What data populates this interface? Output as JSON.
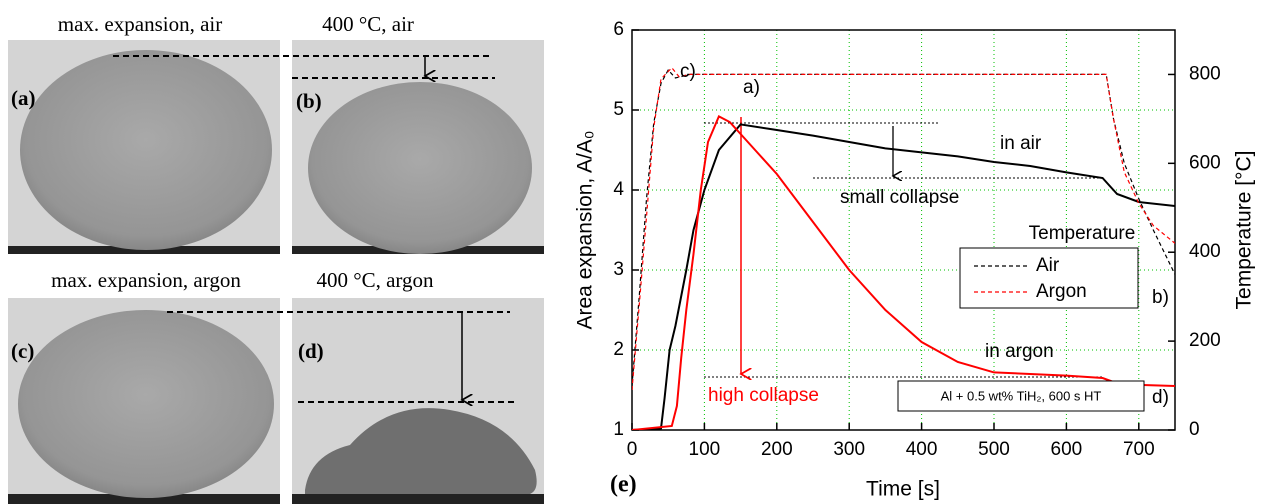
{
  "photos": [
    {
      "title": "max. expansion, air",
      "label": "(a)"
    },
    {
      "title": "400 °C, air",
      "label": "(b)"
    },
    {
      "title": "max. expansion, argon",
      "label": "(c)"
    },
    {
      "title": "400 °C, argon",
      "label": "(d)"
    }
  ],
  "chart_data": {
    "type": "line",
    "panel_label": "(e)",
    "x_label": "Time  [s]",
    "y_label": "Area expansion, A/A₀",
    "y2_label": "Temperature  [°C]",
    "xlim": [
      0,
      750
    ],
    "xticks": [
      0,
      100,
      200,
      300,
      400,
      500,
      600,
      700
    ],
    "ylim": [
      1,
      6
    ],
    "yticks": [
      1,
      2,
      3,
      4,
      5,
      6
    ],
    "y2lim": [
      0,
      900
    ],
    "y2ticks": [
      0,
      200,
      400,
      600,
      800
    ],
    "grid": true,
    "legend_title": "Temperature",
    "legend": "right",
    "series": [
      {
        "name": "in air",
        "color": "#000000",
        "axis": "y",
        "x": [
          0,
          40,
          45,
          52,
          60,
          75,
          85,
          100,
          120,
          150,
          200,
          250,
          300,
          350,
          400,
          450,
          500,
          550,
          600,
          650,
          660,
          670,
          700,
          750
        ],
        "values": [
          1.0,
          1.02,
          1.4,
          2.0,
          2.3,
          3.0,
          3.5,
          4.0,
          4.5,
          4.82,
          4.75,
          4.68,
          4.6,
          4.52,
          4.47,
          4.42,
          4.35,
          4.3,
          4.22,
          4.15,
          4.05,
          3.95,
          3.85,
          3.8
        ]
      },
      {
        "name": "in argon",
        "color": "#ff0000",
        "axis": "y",
        "x": [
          0,
          55,
          62,
          68,
          75,
          85,
          95,
          105,
          120,
          135,
          150,
          175,
          200,
          250,
          300,
          350,
          400,
          450,
          500,
          550,
          600,
          650,
          665,
          680,
          750
        ],
        "values": [
          1.0,
          1.05,
          1.3,
          1.9,
          2.5,
          3.2,
          4.0,
          4.6,
          4.92,
          4.85,
          4.7,
          4.45,
          4.2,
          3.6,
          3.0,
          2.5,
          2.1,
          1.85,
          1.72,
          1.7,
          1.68,
          1.65,
          1.6,
          1.57,
          1.55
        ]
      },
      {
        "name": "Air",
        "color": "#000000",
        "axis": "y2",
        "dashed": true,
        "x": [
          0,
          10,
          20,
          30,
          40,
          50,
          60,
          80,
          655,
          665,
          680,
          700,
          720,
          750
        ],
        "values": [
          100,
          300,
          520,
          690,
          780,
          810,
          792,
          800,
          800,
          700,
          600,
          520,
          450,
          350
        ]
      },
      {
        "name": "Argon",
        "color": "#ff0000",
        "axis": "y2",
        "dashed": true,
        "x": [
          0,
          10,
          20,
          30,
          40,
          55,
          65,
          80,
          655,
          665,
          680,
          700,
          720,
          750
        ],
        "values": [
          90,
          280,
          480,
          680,
          790,
          815,
          795,
          800,
          800,
          700,
          580,
          510,
          460,
          420
        ]
      }
    ],
    "annotations": [
      "a)",
      "b)",
      "c)",
      "d)",
      "small collapse",
      "high collapse",
      "Al + 0.5 wt% TiH₂, 600 s HT"
    ]
  }
}
